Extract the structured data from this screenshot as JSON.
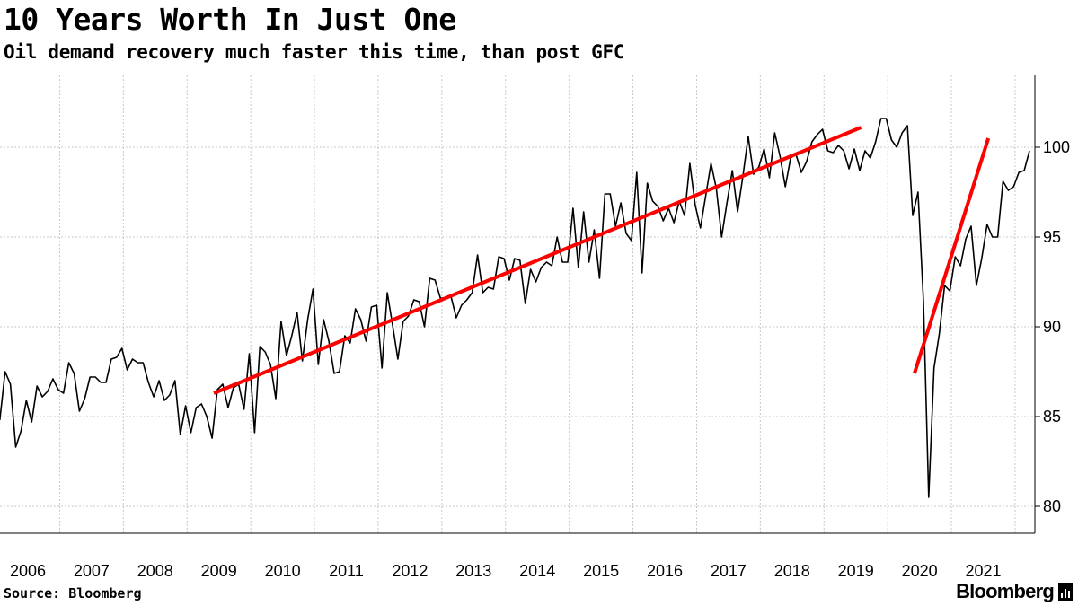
{
  "title": "10 Years Worth In Just One",
  "subtitle": "Oil demand recovery much faster this time, than post GFC",
  "source": "Source: Bloomberg",
  "logo": "Bloomberg",
  "colors": {
    "line": "#000000",
    "trend": "#ff0000",
    "grid": "#c8c8c8"
  },
  "chart_data": {
    "type": "line",
    "title": "10 Years Worth In Just One",
    "subtitle": "Oil demand recovery much faster this time, than post GFC",
    "xlabel": "",
    "ylabel": "",
    "x_ticks": [
      "2006",
      "2007",
      "2008",
      "2009",
      "2010",
      "2011",
      "2012",
      "2013",
      "2014",
      "2015",
      "2016",
      "2017",
      "2018",
      "2019",
      "2020",
      "2021"
    ],
    "y_ticks": [
      80,
      85,
      90,
      95,
      100
    ],
    "ylim": [
      78.5,
      104
    ],
    "y_axis_side": "right",
    "grid": true,
    "series": [
      {
        "values": [
          84.8,
          87.5,
          86.8,
          83.3,
          84.2,
          85.9,
          84.7,
          86.7,
          86.1,
          86.4,
          87.1,
          86.5,
          86.3,
          88.0,
          87.4,
          85.3,
          86.0,
          87.2,
          87.2,
          86.9,
          86.9,
          88.2,
          88.3,
          88.8,
          87.6,
          88.2,
          88.0,
          88.0,
          86.9,
          86.1,
          87.0,
          85.9,
          86.2,
          87.0,
          84.0,
          85.6,
          84.1,
          85.5,
          85.7,
          85.0,
          83.8,
          86.5,
          86.8,
          85.5,
          86.6,
          86.8,
          85.4,
          88.5,
          84.1,
          88.9,
          88.6,
          87.9,
          86.0,
          90.3,
          88.4,
          89.5,
          90.8,
          88.1,
          90.4,
          92.1,
          87.9,
          90.4,
          89.2,
          87.4,
          87.5,
          89.5,
          89.1,
          91.0,
          90.4,
          89.2,
          91.1,
          91.2,
          87.7,
          91.9,
          90.1,
          88.2,
          90.3,
          90.6,
          91.5,
          91.4,
          90.0,
          92.7,
          92.6,
          91.6,
          91.6,
          91.7,
          90.5,
          91.2,
          91.5,
          91.9,
          94.0,
          91.9,
          92.2,
          92.1,
          93.9,
          93.8,
          92.6,
          93.8,
          93.7,
          91.3,
          93.2,
          92.5,
          93.3,
          93.6,
          93.4,
          95.0,
          93.6,
          93.6,
          96.6,
          93.3,
          96.4,
          93.6,
          95.4,
          92.7,
          97.4,
          97.4,
          95.6,
          96.9,
          95.2,
          94.8,
          98.6,
          93.0,
          98.0,
          97.0,
          96.7,
          95.9,
          96.6,
          95.8,
          97.0,
          96.2,
          99.1,
          96.8,
          95.5,
          97.3,
          99.1,
          97.7,
          95.0,
          96.9,
          98.7,
          96.4,
          98.4,
          100.6,
          98.5,
          98.9,
          99.9,
          98.3,
          100.8,
          99.5,
          97.8,
          99.4,
          99.6,
          98.6,
          99.2,
          100.3,
          100.7,
          101.0,
          99.8,
          99.7,
          100.1,
          99.8,
          98.8,
          99.9,
          98.7,
          99.8,
          99.4,
          100.3,
          101.6,
          101.6,
          100.4,
          100.0,
          100.8,
          101.2,
          96.2,
          97.5,
          91.5,
          80.5,
          87.7,
          89.6,
          92.3,
          92.0,
          93.9,
          93.4,
          94.9,
          95.6,
          92.3,
          93.8,
          95.7,
          95.0,
          95.0,
          98.1,
          97.6,
          97.8,
          98.6,
          98.7,
          99.8
        ]
      },
      {
        "name": "",
        "type": "trend",
        "points": [
          [
            "2009",
            86.3
          ],
          [
            "2019",
            101.1
          ]
        ]
      },
      {
        "name": "",
        "type": "trend",
        "points": [
          [
            "2020",
            87.4
          ],
          [
            "2021",
            100.5
          ]
        ]
      }
    ]
  }
}
